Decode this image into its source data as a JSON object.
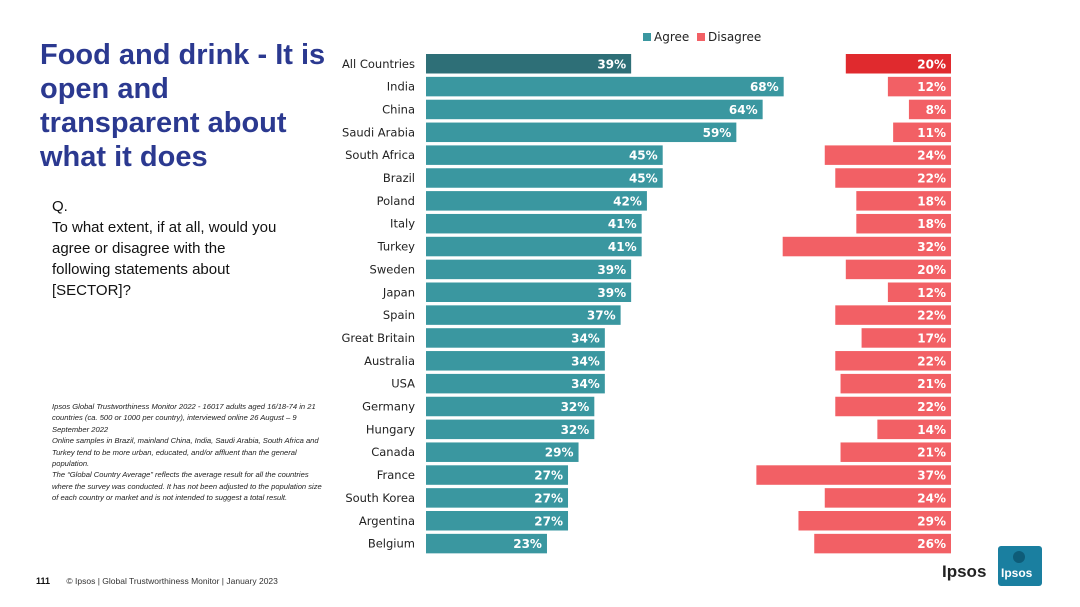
{
  "slide": {
    "title": "Food and drink - It is open and transparent about what it does",
    "question_label": "Q.",
    "question_text": "To what extent, if at all, would you agree or disagree with the following statements about [SECTOR]?",
    "notes": [
      "Ipsos Global Trustworthiness Monitor 2022 - 16017 adults aged 16/18-74 in 21 countries (ca. 500 or 1000 per country), interviewed online 26 August – 9 September 2022",
      "Online samples in Brazil, mainland China, India, Saudi Arabia, South Africa and Turkey tend to be more urban, educated, and/or affluent than the general population.",
      "The “Global Country Average” reflects the average result for all the countries where the survey was conducted. It has not been adjusted to the population size of each country or market and is not intended to suggest a total result."
    ],
    "page_number": "111",
    "footer": "© Ipsos | Global Trustworthiness Monitor | January 2023",
    "logo_text": "Ipsos",
    "logo_box_text": "Ipsos"
  },
  "chart_data": {
    "type": "bar",
    "orientation": "horizontal",
    "categories": [
      "All Countries",
      "India",
      "China",
      "Saudi Arabia",
      "South Africa",
      "Brazil",
      "Poland",
      "Italy",
      "Turkey",
      "Sweden",
      "Japan",
      "Spain",
      "Great Britain",
      "Australia",
      "USA",
      "Germany",
      "Hungary",
      "Canada",
      "France",
      "South Korea",
      "Argentina",
      "Belgium"
    ],
    "series": [
      {
        "name": "Agree",
        "color": "#3a97a0",
        "highlight_color": "#2e6f77",
        "values": [
          39,
          68,
          64,
          59,
          45,
          45,
          42,
          41,
          41,
          39,
          39,
          37,
          34,
          34,
          34,
          32,
          32,
          29,
          27,
          27,
          27,
          23
        ]
      },
      {
        "name": "Disagree",
        "color": "#f26065",
        "highlight_color": "#e02a2e",
        "values": [
          20,
          12,
          8,
          11,
          24,
          22,
          18,
          18,
          32,
          20,
          12,
          22,
          17,
          22,
          21,
          22,
          14,
          21,
          37,
          24,
          29,
          26
        ]
      }
    ],
    "value_suffix": "%",
    "legend_position": "top",
    "highlight_category": "All Countries"
  }
}
